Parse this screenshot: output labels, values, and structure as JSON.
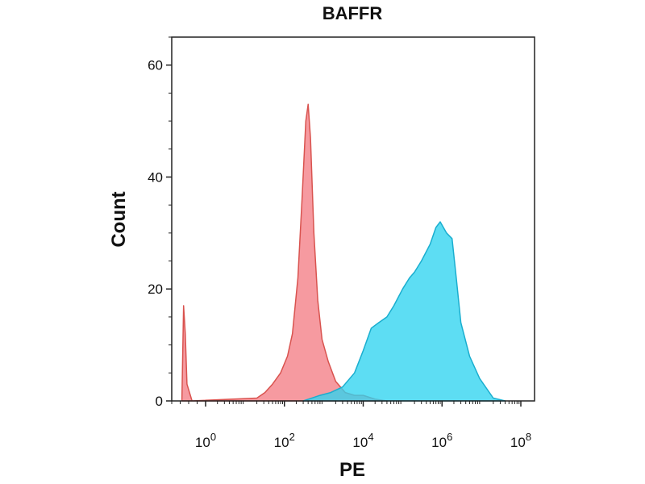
{
  "chart_data": {
    "type": "area",
    "title": "BAFFR",
    "xlabel": "PE",
    "ylabel": "Count",
    "x_scale": "log10-with-linear-segment-near-zero",
    "xlim": [
      0,
      100000000
    ],
    "ylim": [
      0,
      65
    ],
    "y_ticks": [
      {
        "value": 0,
        "label": "0"
      },
      {
        "value": 20,
        "label": "20"
      },
      {
        "value": 40,
        "label": "40"
      },
      {
        "value": 60,
        "label": "60"
      }
    ],
    "x_ticks": [
      {
        "value": 1,
        "base": "10",
        "exp": "0"
      },
      {
        "value": 100,
        "base": "10",
        "exp": "2"
      },
      {
        "value": 10000,
        "base": "10",
        "exp": "4"
      },
      {
        "value": 1000000,
        "base": "10",
        "exp": "6"
      },
      {
        "value": 100000000,
        "base": "10",
        "exp": "8"
      }
    ],
    "grid": false,
    "legend": "none",
    "series": [
      {
        "color": "#f47d85",
        "stroke": "#d9534f",
        "points": [
          [
            0.3,
            0
          ],
          [
            0.35,
            17
          ],
          [
            0.4,
            12
          ],
          [
            0.45,
            3
          ],
          [
            0.6,
            0
          ],
          [
            20,
            0.5
          ],
          [
            32,
            1.5
          ],
          [
            50,
            3
          ],
          [
            80,
            5
          ],
          [
            120,
            8
          ],
          [
            160,
            12
          ],
          [
            220,
            22
          ],
          [
            280,
            36
          ],
          [
            350,
            50
          ],
          [
            400,
            53
          ],
          [
            460,
            47
          ],
          [
            560,
            30
          ],
          [
            700,
            18
          ],
          [
            900,
            11
          ],
          [
            1300,
            7
          ],
          [
            2000,
            3.5
          ],
          [
            3500,
            1.5
          ],
          [
            6000,
            1
          ],
          [
            10000,
            1
          ],
          [
            20000,
            0.3
          ],
          [
            40000,
            0
          ]
        ]
      },
      {
        "color": "#2fd3f0",
        "stroke": "#1aaecf",
        "points": [
          [
            300,
            0
          ],
          [
            800,
            1
          ],
          [
            1500,
            1.5
          ],
          [
            3000,
            2.5
          ],
          [
            6000,
            5
          ],
          [
            10000,
            9
          ],
          [
            16000,
            13
          ],
          [
            25000,
            14
          ],
          [
            40000,
            15
          ],
          [
            60000,
            17
          ],
          [
            100000,
            20
          ],
          [
            150000,
            22
          ],
          [
            200000,
            23
          ],
          [
            300000,
            25
          ],
          [
            500000,
            28
          ],
          [
            700000,
            31
          ],
          [
            900000,
            32
          ],
          [
            1300000,
            30
          ],
          [
            1800000,
            29
          ],
          [
            2300000,
            22
          ],
          [
            3000000,
            14
          ],
          [
            5000000,
            8
          ],
          [
            9000000,
            4
          ],
          [
            20000000,
            0.5
          ],
          [
            40000000,
            0
          ]
        ]
      }
    ]
  },
  "colors": {
    "axis": "#222222",
    "background": "#ffffff"
  }
}
